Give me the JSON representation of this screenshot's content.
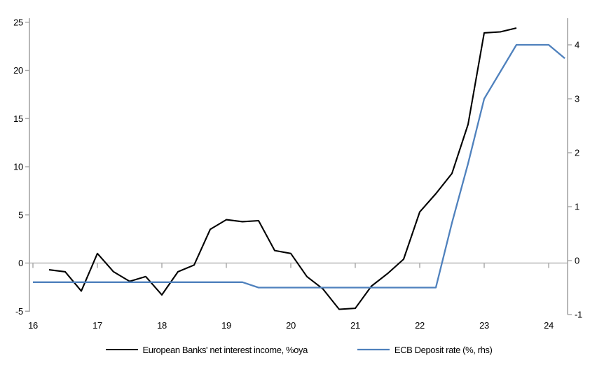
{
  "chart_data": {
    "type": "line",
    "title": "",
    "xlabel": "",
    "ylabel_left": "",
    "ylabel_right": "",
    "grid": "horizontal zero gridline only",
    "legend_position": "bottom-center",
    "x_axis": {
      "ticks": [
        16,
        17,
        18,
        19,
        20,
        21,
        22,
        23,
        24
      ],
      "min": 16,
      "max": 24.3
    },
    "left_axis": {
      "ticks": [
        -5,
        0,
        5,
        10,
        15,
        20,
        25
      ],
      "min": -5,
      "max": 25
    },
    "right_axis": {
      "ticks": [
        -1,
        0,
        1,
        2,
        3,
        4
      ],
      "min": -1,
      "max": 4.5
    },
    "series": [
      {
        "name": "European Banks' net interest income, %oya",
        "axis": "left",
        "color": "#000000",
        "width": 2.1,
        "x": [
          16.25,
          16.5,
          16.75,
          17.0,
          17.25,
          17.5,
          17.75,
          18.0,
          18.25,
          18.5,
          18.75,
          19.0,
          19.25,
          19.5,
          19.75,
          20.0,
          20.25,
          20.5,
          20.75,
          21.0,
          21.25,
          21.5,
          21.75,
          22.0,
          22.25,
          22.5,
          22.75,
          23.0,
          23.25,
          23.5
        ],
        "values": [
          -0.7,
          -0.9,
          -2.9,
          1.0,
          -0.9,
          -1.9,
          -1.4,
          -3.3,
          -0.9,
          -0.2,
          3.5,
          4.5,
          4.3,
          4.4,
          1.3,
          1.0,
          -1.4,
          -2.7,
          -4.8,
          -4.7,
          -2.4,
          -1.1,
          0.4,
          5.3,
          7.2,
          9.3,
          14.4,
          23.9,
          24.0,
          24.4
        ]
      },
      {
        "name": "ECB Deposit rate (%, rhs)",
        "axis": "right",
        "color": "#4f81bd",
        "width": 2.3,
        "x": [
          16.0,
          16.25,
          16.5,
          16.75,
          17.0,
          17.25,
          17.5,
          17.75,
          18.0,
          18.25,
          18.5,
          18.75,
          19.0,
          19.25,
          19.5,
          19.75,
          20.0,
          20.25,
          20.5,
          20.75,
          21.0,
          21.25,
          21.5,
          21.75,
          22.0,
          22.25,
          22.5,
          22.75,
          23.0,
          23.25,
          23.5,
          23.75,
          24.0,
          24.25
        ],
        "values": [
          -0.4,
          -0.4,
          -0.4,
          -0.4,
          -0.4,
          -0.4,
          -0.4,
          -0.4,
          -0.4,
          -0.4,
          -0.4,
          -0.4,
          -0.4,
          -0.4,
          -0.5,
          -0.5,
          -0.5,
          -0.5,
          -0.5,
          -0.5,
          -0.5,
          -0.5,
          -0.5,
          -0.5,
          -0.5,
          -0.5,
          0.7,
          1.8,
          3.0,
          3.5,
          4.0,
          4.0,
          4.0,
          3.75
        ]
      }
    ]
  },
  "legend": {
    "series1_label": "European Banks' net interest income, %oya",
    "series2_label": "ECB Deposit rate (%, rhs)"
  },
  "colors": {
    "background": "#ffffff",
    "axis_line": "#a6a6a6",
    "gridline": "#b7b7b7",
    "tick_text": "#000000",
    "series1": "#000000",
    "series2": "#4f81bd"
  }
}
